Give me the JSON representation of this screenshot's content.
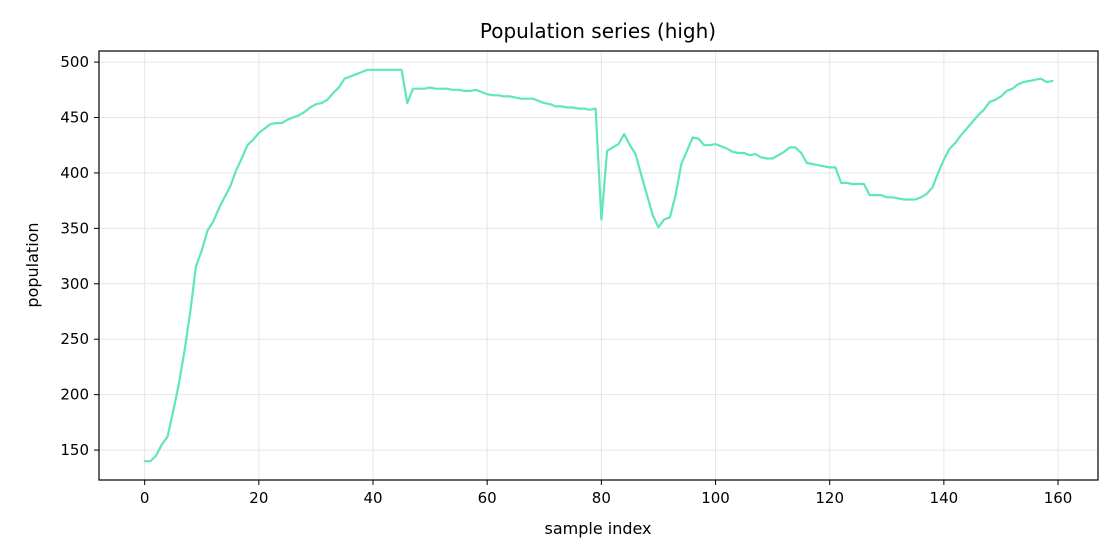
{
  "chart_data": {
    "type": "line",
    "title": "Population series (high)",
    "xlabel": "sample index",
    "ylabel": "population",
    "xlim": [
      -8,
      167
    ],
    "ylim": [
      123,
      510
    ],
    "xticks": [
      0,
      20,
      40,
      60,
      80,
      100,
      120,
      140,
      160
    ],
    "yticks": [
      150,
      200,
      250,
      300,
      350,
      400,
      450,
      500
    ],
    "grid": true,
    "legend": "none",
    "series_color": "#5fe6bb",
    "series": [
      {
        "x": [
          0,
          1,
          2,
          3,
          4,
          5,
          6,
          7,
          8,
          9,
          10,
          11,
          12,
          13,
          14,
          15,
          16,
          17,
          18,
          19,
          20,
          21,
          22,
          23,
          24,
          25,
          26,
          27,
          28,
          29,
          30,
          31,
          32,
          33,
          34,
          35,
          36,
          37,
          38,
          39,
          40,
          41,
          42,
          43,
          44,
          45,
          46,
          47,
          48,
          49,
          50,
          51,
          52,
          53,
          54,
          55,
          56,
          57,
          58,
          59,
          60,
          61,
          62,
          63,
          64,
          65,
          66,
          67,
          68,
          69,
          70,
          71,
          72,
          73,
          74,
          75,
          76,
          77,
          78,
          79,
          80,
          81,
          82,
          83,
          84,
          85,
          86,
          87,
          88,
          89,
          90,
          91,
          92,
          93,
          94,
          95,
          96,
          97,
          98,
          99,
          100,
          101,
          102,
          103,
          104,
          105,
          106,
          107,
          108,
          109,
          110,
          111,
          112,
          113,
          114,
          115,
          116,
          117,
          118,
          119,
          120,
          121,
          122,
          123,
          124,
          125,
          126,
          127,
          128,
          129,
          130,
          131,
          132,
          133,
          134,
          135,
          136,
          137,
          138,
          139,
          140,
          141,
          142,
          143,
          144,
          145,
          146,
          147,
          148,
          149,
          150,
          151,
          152,
          153,
          154,
          155,
          156,
          157,
          158,
          159
        ],
        "values": [
          140,
          140,
          145,
          155,
          162,
          185,
          210,
          240,
          275,
          316,
          330,
          348,
          356,
          368,
          378,
          388,
          402,
          413,
          425,
          430,
          436,
          440,
          444,
          445,
          445,
          448,
          450,
          452,
          455,
          459,
          462,
          463,
          466,
          472,
          477,
          485,
          487,
          489,
          491,
          493,
          493,
          493,
          493,
          493,
          493,
          493,
          463,
          476,
          476,
          476,
          477,
          476,
          476,
          476,
          475,
          475,
          474,
          474,
          475,
          473,
          471,
          470,
          470,
          469,
          469,
          468,
          467,
          467,
          467,
          465,
          463,
          462,
          460,
          460,
          459,
          459,
          458,
          458,
          457,
          458,
          358,
          420,
          423,
          426,
          435,
          425,
          417,
          398,
          380,
          362,
          351,
          358,
          360,
          380,
          408,
          420,
          432,
          431,
          425,
          425,
          426,
          424,
          422,
          419,
          418,
          418,
          416,
          417,
          414,
          413,
          413,
          416,
          419,
          423,
          423,
          418,
          409,
          408,
          407,
          406,
          405,
          405,
          391,
          391,
          390,
          390,
          390,
          380,
          380,
          380,
          378,
          378,
          377,
          376,
          376,
          376,
          378,
          381,
          387,
          400,
          412,
          422,
          427,
          434,
          440,
          446,
          452,
          457,
          464,
          466,
          469,
          474,
          476,
          480,
          482,
          483,
          484,
          485,
          482,
          483
        ]
      }
    ]
  }
}
